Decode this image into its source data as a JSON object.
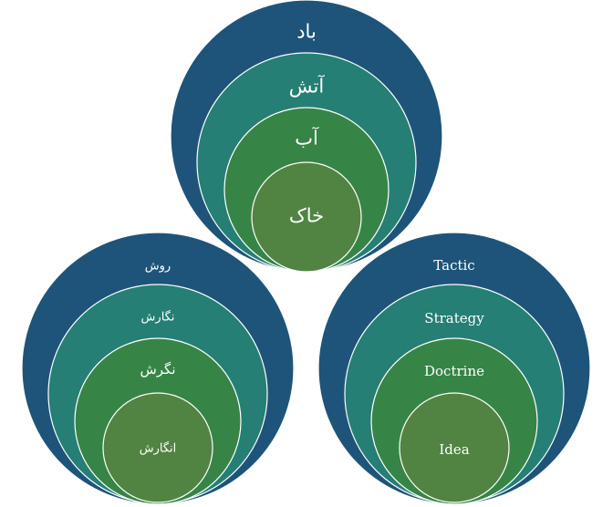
{
  "colors": {
    "outer": "#1e5479",
    "second": "#257f74",
    "third": "#378447",
    "inner": "#518443",
    "stroke": "#ffffff",
    "text": "#ffffff",
    "background": "#ffffff"
  },
  "groups": {
    "top": {
      "levels": [
        "باد",
        "آتش",
        "آب",
        "خاک"
      ]
    },
    "left": {
      "levels": [
        "روش",
        "نگارش",
        "نگرش",
        "انگارش"
      ]
    },
    "right": {
      "levels": [
        "Tactic",
        "Strategy",
        "Doctrine",
        "Idea"
      ]
    }
  }
}
